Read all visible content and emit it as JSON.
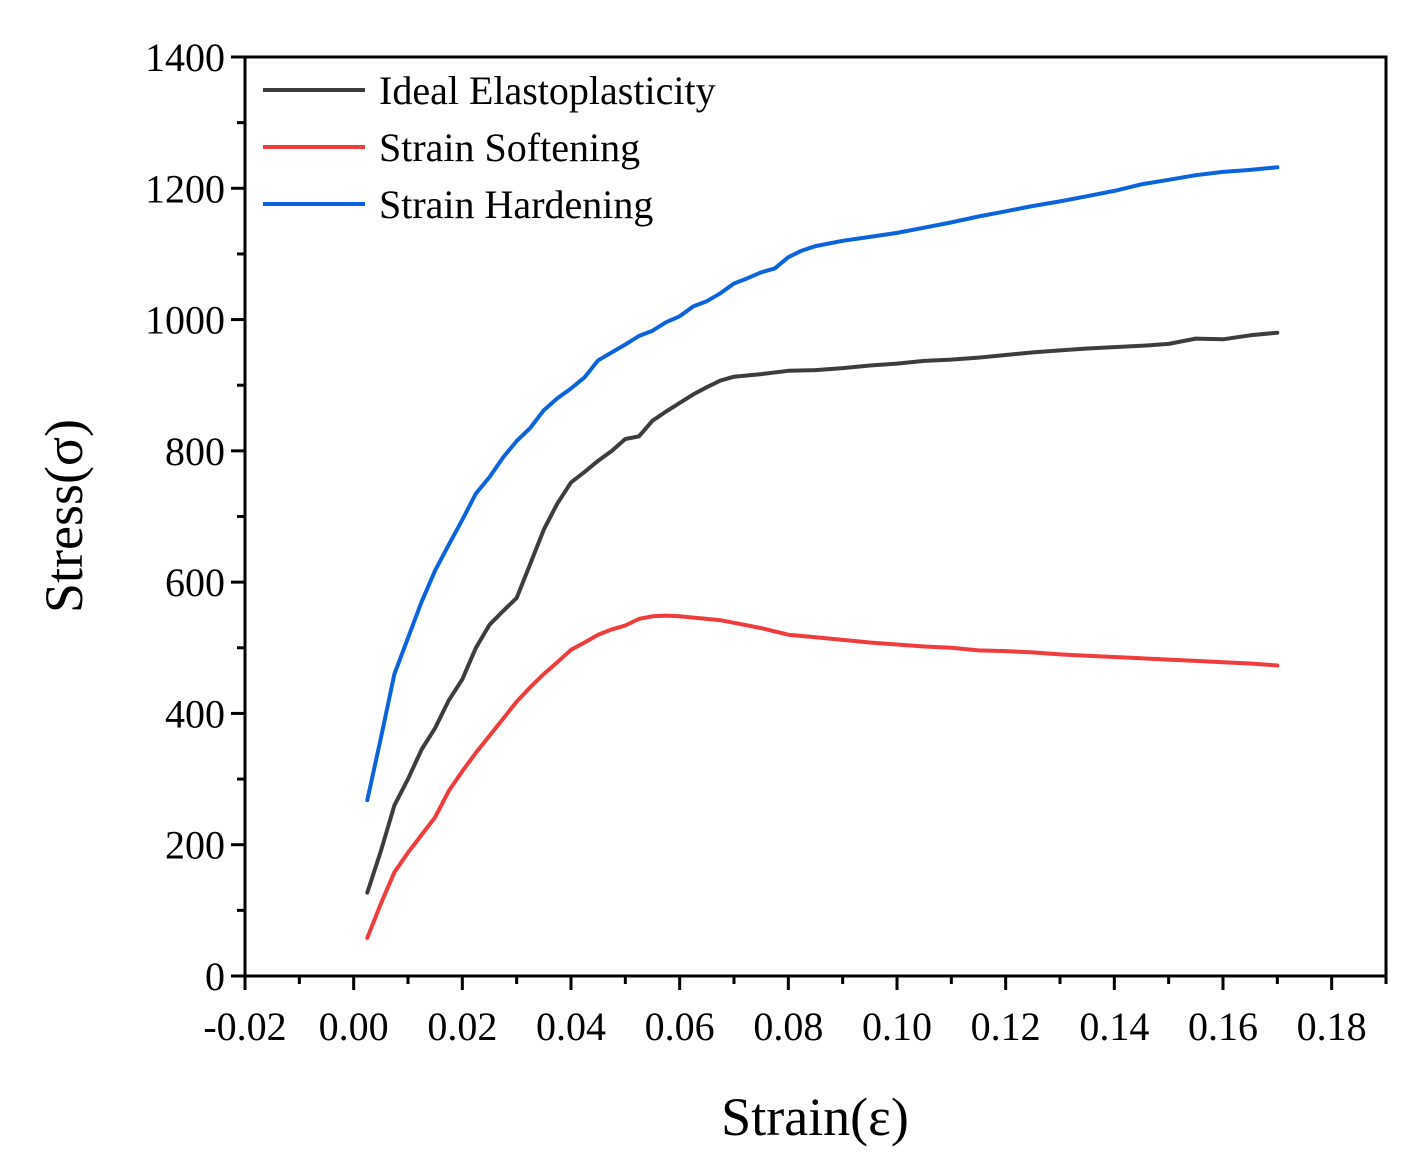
{
  "chart_data": {
    "type": "line",
    "title": "",
    "xlabel": "Strain(ε)",
    "ylabel": "Stress(σ)",
    "xlim": [
      -0.02,
      0.19
    ],
    "ylim": [
      0,
      1400
    ],
    "xticks": [
      -0.02,
      0.0,
      0.02,
      0.04,
      0.06,
      0.08,
      0.1,
      0.12,
      0.14,
      0.16,
      0.18
    ],
    "xtick_labels": [
      "-0.02",
      "0.00",
      "0.02",
      "0.04",
      "0.06",
      "0.08",
      "0.10",
      "0.12",
      "0.14",
      "0.16",
      "0.18"
    ],
    "yticks": [
      0,
      200,
      400,
      600,
      800,
      1000,
      1200,
      1400
    ],
    "ytick_labels": [
      "0",
      "200",
      "400",
      "600",
      "800",
      "1000",
      "1200",
      "1400"
    ],
    "grid": false,
    "legend_position": "top-left",
    "series": [
      {
        "name": "Ideal Elastoplasticity",
        "color": "#3d3d3d",
        "x": [
          0.0025,
          0.005,
          0.0075,
          0.01,
          0.0125,
          0.015,
          0.0175,
          0.02,
          0.0225,
          0.025,
          0.0275,
          0.03,
          0.0325,
          0.035,
          0.0375,
          0.04,
          0.0425,
          0.045,
          0.0475,
          0.05,
          0.0525,
          0.055,
          0.0575,
          0.06,
          0.0625,
          0.065,
          0.0675,
          0.07,
          0.075,
          0.08,
          0.085,
          0.09,
          0.095,
          0.1,
          0.105,
          0.11,
          0.115,
          0.12,
          0.125,
          0.13,
          0.135,
          0.14,
          0.145,
          0.15,
          0.155,
          0.16,
          0.165,
          0.17
        ],
        "y": [
          127,
          190,
          260,
          300,
          345,
          378,
          420,
          452,
          500,
          535,
          556,
          576,
          628,
          680,
          720,
          752,
          768,
          785,
          800,
          818,
          822,
          846,
          860,
          873,
          886,
          897,
          907,
          913,
          917,
          922,
          923,
          926,
          930,
          933,
          937,
          939,
          942,
          946,
          950,
          953,
          956,
          958,
          960,
          963,
          971,
          970,
          976,
          980
        ]
      },
      {
        "name": "Strain Softening",
        "color": "#f03c3c",
        "x": [
          0.0025,
          0.005,
          0.0075,
          0.01,
          0.0125,
          0.015,
          0.0175,
          0.02,
          0.0225,
          0.025,
          0.0275,
          0.03,
          0.0325,
          0.035,
          0.0375,
          0.04,
          0.0425,
          0.045,
          0.0475,
          0.05,
          0.0525,
          0.055,
          0.0575,
          0.06,
          0.0625,
          0.065,
          0.0675,
          0.07,
          0.075,
          0.08,
          0.085,
          0.09,
          0.095,
          0.1,
          0.105,
          0.11,
          0.115,
          0.12,
          0.125,
          0.13,
          0.135,
          0.14,
          0.145,
          0.15,
          0.155,
          0.16,
          0.165,
          0.17
        ],
        "y": [
          58,
          110,
          158,
          188,
          215,
          242,
          282,
          312,
          340,
          366,
          392,
          418,
          440,
          460,
          478,
          497,
          508,
          520,
          528,
          534,
          544,
          548,
          549,
          548,
          546,
          544,
          542,
          538,
          530,
          520,
          516,
          512,
          508,
          505,
          502,
          500,
          496,
          495,
          493,
          490,
          488,
          486,
          484,
          482,
          480,
          478,
          476,
          473
        ]
      },
      {
        "name": "Strain Hardening",
        "color": "#0b64dc",
        "x": [
          0.0025,
          0.005,
          0.0075,
          0.01,
          0.0125,
          0.015,
          0.0175,
          0.02,
          0.0225,
          0.025,
          0.0275,
          0.03,
          0.0325,
          0.035,
          0.0375,
          0.04,
          0.0425,
          0.045,
          0.0475,
          0.05,
          0.0525,
          0.055,
          0.0575,
          0.06,
          0.0625,
          0.065,
          0.0675,
          0.07,
          0.0725,
          0.075,
          0.0775,
          0.08,
          0.0825,
          0.085,
          0.09,
          0.095,
          0.1,
          0.105,
          0.11,
          0.115,
          0.12,
          0.125,
          0.13,
          0.135,
          0.14,
          0.145,
          0.15,
          0.155,
          0.16,
          0.165,
          0.17
        ],
        "y": [
          268,
          362,
          460,
          515,
          570,
          618,
          657,
          695,
          735,
          760,
          790,
          815,
          835,
          862,
          880,
          895,
          912,
          938,
          950,
          962,
          975,
          983,
          996,
          1005,
          1020,
          1028,
          1040,
          1055,
          1063,
          1072,
          1078,
          1095,
          1105,
          1112,
          1120,
          1126,
          1132,
          1140,
          1148,
          1157,
          1165,
          1173,
          1180,
          1188,
          1196,
          1206,
          1213,
          1220,
          1225,
          1228,
          1232
        ]
      }
    ]
  }
}
